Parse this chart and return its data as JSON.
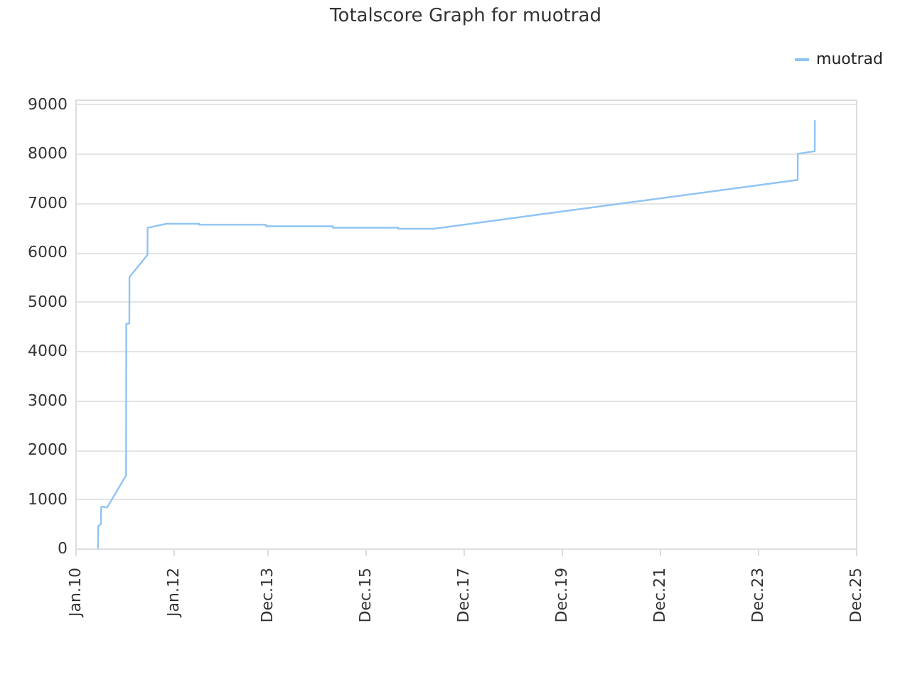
{
  "chart_data": {
    "type": "line",
    "title": "Totalscore Graph for muotrad",
    "x": [
      "2010-06-19",
      "2010-06-20",
      "2010-07-11",
      "2010-07-12",
      "2010-07-21",
      "2010-08-25",
      "2011-01-14",
      "2011-01-15",
      "2011-02-07",
      "2011-02-08",
      "2011-06-22",
      "2011-06-23",
      "2011-11-10",
      "2012-07-10",
      "2012-07-11",
      "2013-11-20",
      "2013-11-21",
      "2015-04-02",
      "2015-04-03",
      "2016-08-01",
      "2016-08-02",
      "2017-04-23",
      "2024-09-23",
      "2024-09-24",
      "2025-01-28",
      "2025-01-29"
    ],
    "series": [
      {
        "name": "muotrad",
        "color": "#90c4f4",
        "values": [
          0,
          450,
          500,
          830,
          850,
          830,
          1480,
          4550,
          4560,
          5500,
          5950,
          6500,
          6580,
          6580,
          6560,
          6560,
          6530,
          6530,
          6500,
          6500,
          6480,
          6480,
          7470,
          8000,
          8050,
          8680
        ]
      }
    ],
    "xlim": [
      "2010-01-01",
      "2025-12-01"
    ],
    "xticks": [
      {
        "value": "2010-01-01",
        "label": "Jan.10"
      },
      {
        "value": "2012-01-01",
        "label": "Jan.12"
      },
      {
        "value": "2013-12-01",
        "label": "Dec.13"
      },
      {
        "value": "2015-12-01",
        "label": "Dec.15"
      },
      {
        "value": "2017-12-01",
        "label": "Dec.17"
      },
      {
        "value": "2019-12-01",
        "label": "Dec.19"
      },
      {
        "value": "2021-12-01",
        "label": "Dec.21"
      },
      {
        "value": "2023-12-01",
        "label": "Dec.23"
      },
      {
        "value": "2025-12-01",
        "label": "Dec.25"
      }
    ],
    "ylim": [
      0,
      9100
    ],
    "yticks": [
      0,
      1000,
      2000,
      3000,
      4000,
      5000,
      6000,
      7000,
      8000,
      9000
    ],
    "grid": "y",
    "legend": "top right"
  }
}
